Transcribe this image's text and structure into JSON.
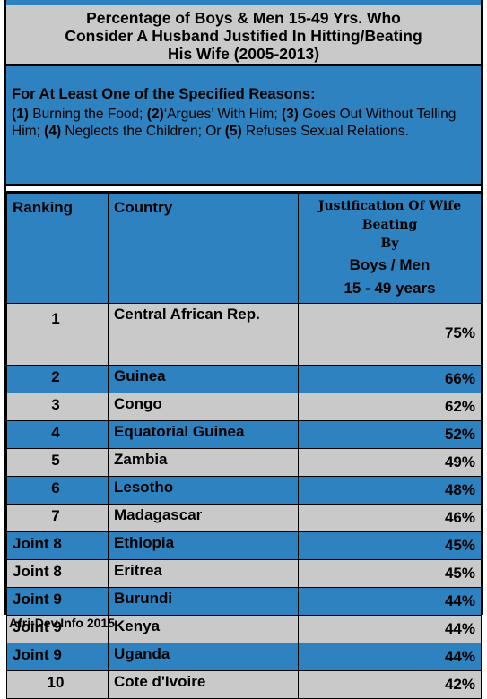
{
  "colors": {
    "blue": "#2e82c0",
    "grey": "#c9c9c9"
  },
  "title": {
    "line1": "Percentage of Boys & Men 15-49 Yrs. Who",
    "line2": "Consider A Husband Justified In Hitting/Beating",
    "line3": "His Wife (2005-2013)"
  },
  "reasons": {
    "lead": "For At Least One of the Specified Reasons:",
    "n1": "(1)",
    "r1": " Burning the Food; ",
    "n2": "(2)",
    "r2": "‘Argues’ With Him; ",
    "n3": "(3)",
    "r3": " Goes Out Without Telling Him; ",
    "n4": "(4)",
    "r4": " Neglects the Children; Or ",
    "n5": "(5)",
    "r5": " Refuses Sexual Relations."
  },
  "chart_data": {
    "type": "table",
    "columns": [
      "Ranking",
      "Country",
      "Justification Of Wife Beating By Boys / Men 15 - 49 years"
    ],
    "header": {
      "ranking": "Ranking",
      "country": "Country",
      "justification_l1": "Justification Of Wife",
      "justification_l2": "Beating",
      "justification_l3": "By",
      "justification_l4": "Boys / Men",
      "justification_l5": "15 - 49 years"
    },
    "rows": [
      {
        "rank": "1",
        "country": "Central African Rep.",
        "value": "75%"
      },
      {
        "rank": "2",
        "country": "Guinea",
        "value": "66%"
      },
      {
        "rank": "3",
        "country": "Congo",
        "value": "62%"
      },
      {
        "rank": "4",
        "country": "Equatorial Guinea",
        "value": "52%"
      },
      {
        "rank": "5",
        "country": "Zambia",
        "value": "49%"
      },
      {
        "rank": "6",
        "country": "Lesotho",
        "value": "48%"
      },
      {
        "rank": "7",
        "country": "Madagascar",
        "value": "46%"
      },
      {
        "rank": "Joint 8",
        "country": "Ethiopia",
        "value": "45%"
      },
      {
        "rank": "Joint 8",
        "country": "Eritrea",
        "value": "45%"
      },
      {
        "rank": "Joint 9",
        "country": "Burundi",
        "value": "44%"
      },
      {
        "rank": "Joint 9",
        "country": "Kenya",
        "value": "44%"
      },
      {
        "rank": "Joint 9",
        "country": "Uganda",
        "value": "44%"
      },
      {
        "rank": "10",
        "country": "Cote d'Ivoire",
        "value": "42%"
      }
    ]
  },
  "footer": "Afri-Dev.Info 2015"
}
